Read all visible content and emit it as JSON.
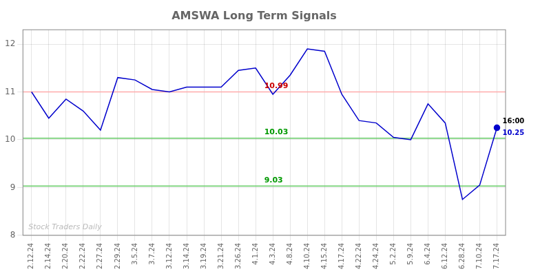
{
  "chart_data": {
    "type": "line",
    "title": "AMSWA Long Term Signals",
    "categories": [
      "2.12.24",
      "2.14.24",
      "2.20.24",
      "2.22.24",
      "2.27.24",
      "2.29.24",
      "3.5.24",
      "3.7.24",
      "3.12.24",
      "3.14.24",
      "3.19.24",
      "3.21.24",
      "3.26.24",
      "4.1.24",
      "4.3.24",
      "4.8.24",
      "4.10.24",
      "4.15.24",
      "4.17.24",
      "4.22.24",
      "4.24.24",
      "5.2.24",
      "5.9.24",
      "6.4.24",
      "6.12.24",
      "6.28.24",
      "7.10.24",
      "7.17.24"
    ],
    "series": [
      {
        "color": "#0000cc",
        "values": [
          11.0,
          10.45,
          10.85,
          10.6,
          10.2,
          11.3,
          11.25,
          11.05,
          11.0,
          11.1,
          11.1,
          11.1,
          11.45,
          11.5,
          10.95,
          11.35,
          11.9,
          11.85,
          10.95,
          10.4,
          10.35,
          10.05,
          10.0,
          10.75,
          10.35,
          8.75,
          9.05,
          10.25
        ]
      }
    ],
    "ylim": [
      8.0,
      12.3
    ],
    "yticks": [
      8,
      9,
      10,
      11,
      12
    ],
    "grid": true,
    "reference_lines": [
      {
        "y": 11.0,
        "color": "#ffaaaa",
        "label": "10.99",
        "label_color": "#cc0000"
      },
      {
        "y": 10.03,
        "color": "#66cc66",
        "label": "10.03",
        "label_color": "#009900"
      },
      {
        "y": 9.03,
        "color": "#66cc66",
        "label": "9.03",
        "label_color": "#009900"
      }
    ],
    "annotations": [
      {
        "text": "16:00",
        "color": "#000000"
      },
      {
        "text": "10.25",
        "color": "#0000cc"
      }
    ],
    "watermark": {
      "text": "Stock Traders Daily",
      "color": "#bbbbbb"
    }
  }
}
